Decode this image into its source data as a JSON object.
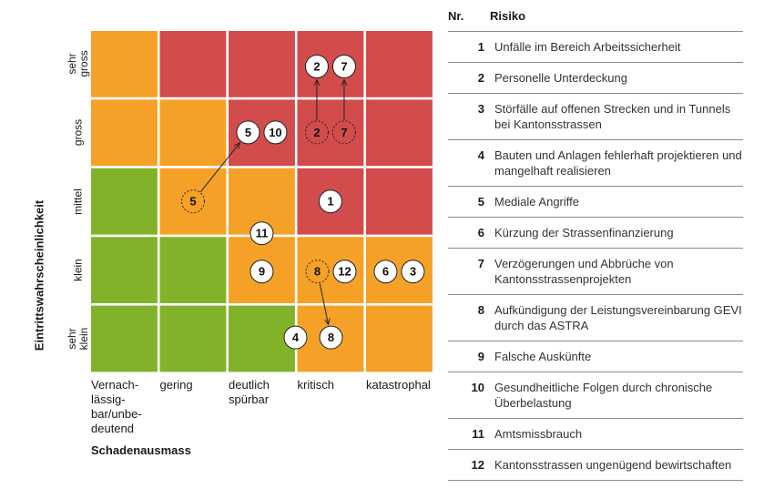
{
  "chart_data": {
    "type": "heatmap",
    "title": "",
    "y_axis_title": "Eintrittswahrscheinlichkeit",
    "x_axis_title": "Schadenausmass",
    "y_levels": [
      "sehr klein",
      "klein",
      "mittel",
      "gross",
      "sehr gross"
    ],
    "x_levels": [
      "Vernach-lässig-bar/unbe-deutend",
      "gering",
      "deutlich spürbar",
      "kritisch",
      "katastrophal"
    ],
    "y_level_lines": [
      [
        "sehr",
        "klein"
      ],
      [
        "klein"
      ],
      [
        "mittel"
      ],
      [
        "gross"
      ],
      [
        "sehr",
        "gross"
      ]
    ],
    "x_level_lines": [
      [
        "Vernach-",
        "lässig-",
        "bar/unbe-",
        "deutend"
      ],
      [
        "gering"
      ],
      [
        "deutlich",
        "spürbar"
      ],
      [
        "kritisch"
      ],
      [
        "katastrophal"
      ]
    ],
    "colors": {
      "green": "#82b22a",
      "orange": "#f5a128",
      "red": "#d24c4c"
    },
    "grid_colors": [
      [
        "green",
        "green",
        "green",
        "orange",
        "orange"
      ],
      [
        "green",
        "green",
        "orange",
        "orange",
        "orange"
      ],
      [
        "green",
        "orange",
        "orange",
        "red",
        "red"
      ],
      [
        "orange",
        "orange",
        "red",
        "red",
        "red"
      ],
      [
        "orange",
        "red",
        "red",
        "red",
        "red"
      ]
    ],
    "risks_current": [
      {
        "id": "1",
        "impact": 3,
        "probability": 2
      },
      {
        "id": "2",
        "impact": 3,
        "probability": 4
      },
      {
        "id": "7",
        "impact": 3,
        "probability": 4
      },
      {
        "id": "5",
        "impact": 2,
        "probability": 3
      },
      {
        "id": "10",
        "impact": 2,
        "probability": 3
      },
      {
        "id": "11",
        "impact": 2,
        "probability": 2
      },
      {
        "id": "9",
        "impact": 2,
        "probability": 1
      },
      {
        "id": "12",
        "impact": 3,
        "probability": 1
      },
      {
        "id": "6",
        "impact": 4,
        "probability": 1
      },
      {
        "id": "3",
        "impact": 4,
        "probability": 1
      },
      {
        "id": "4",
        "impact": 2,
        "probability": 0
      },
      {
        "id": "8",
        "impact": 3,
        "probability": 0
      }
    ],
    "risks_previous": [
      {
        "id": "2",
        "impact": 3,
        "probability": 3
      },
      {
        "id": "7",
        "impact": 3,
        "probability": 3
      },
      {
        "id": "5",
        "impact": 1,
        "probability": 2
      },
      {
        "id": "8",
        "impact": 3,
        "probability": 1
      }
    ]
  },
  "legend": {
    "header_nr": "Nr.",
    "header_risk": "Risiko",
    "items": [
      {
        "nr": "1",
        "text": "Unfälle im Bereich Arbeitssicherheit"
      },
      {
        "nr": "2",
        "text": "Personelle Unterdeckung"
      },
      {
        "nr": "3",
        "text": "Störfälle auf offenen Strecken und in Tunnels bei Kantonsstrassen"
      },
      {
        "nr": "4",
        "text": "Bauten und Anlagen fehlerhaft projektieren und mangelhaft realisieren"
      },
      {
        "nr": "5",
        "text": "Mediale Angriffe"
      },
      {
        "nr": "6",
        "text": "Kürzung der Strassenfinanzierung"
      },
      {
        "nr": "7",
        "text": "Verzögerungen und Abbrüche von Kantonsstrassenprojekten"
      },
      {
        "nr": "8",
        "text": "Aufkündigung der Leistungsvereinbarung GEVI durch das ASTRA"
      },
      {
        "nr": "9",
        "text": "Falsche Auskünfte"
      },
      {
        "nr": "10",
        "text": "Gesundheitliche Folgen durch chronische Überbelastung"
      },
      {
        "nr": "11",
        "text": "Amtsmissbrauch"
      },
      {
        "nr": "12",
        "text": "Kantonsstrassen ungenügend bewirtschaften"
      }
    ]
  }
}
